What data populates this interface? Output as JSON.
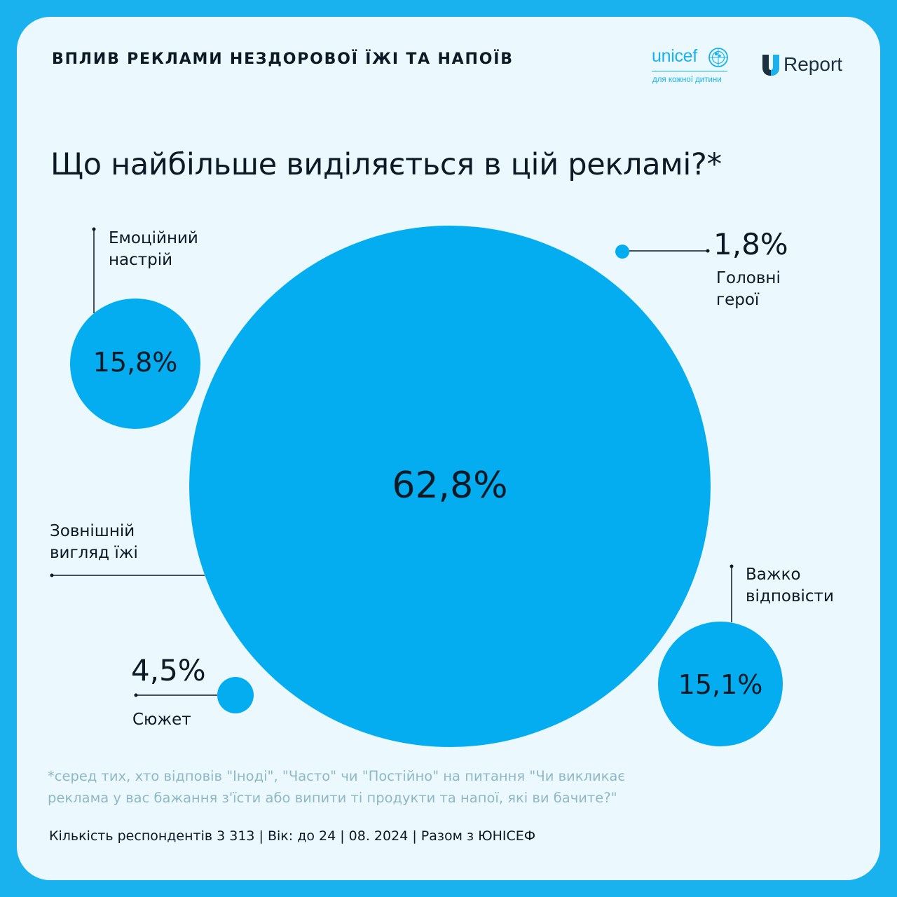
{
  "header": {
    "title": "ВПЛИВ РЕКЛАМИ НЕЗДОРОВОЇ ЇЖІ ТА НАПОЇВ",
    "unicef_word": "unicef",
    "unicef_tagline": "для кожної дитини",
    "ureport_word": "Report"
  },
  "colors": {
    "background": "#1ab2ee",
    "card": "#ebf8fd",
    "bubble": "#03adef",
    "text": "#0b1a25"
  },
  "chart_data": {
    "type": "bubble",
    "title": "Що найбільше виділяється в цій рекламі?*",
    "series": [
      {
        "label": "Зовнішній вигляд їжі",
        "value": 62.8,
        "value_text": "62,8%"
      },
      {
        "label": "Емоційний настрій",
        "value": 15.8,
        "value_text": "15,8%"
      },
      {
        "label": "Важко відповісти",
        "value": 15.1,
        "value_text": "15,1%"
      },
      {
        "label": "Сюжет",
        "value": 4.5,
        "value_text": "4,5%"
      },
      {
        "label": "Головні герої",
        "value": 1.8,
        "value_text": "1,8%"
      }
    ]
  },
  "labels": {
    "emotional_line1": "Емоційний",
    "emotional_line2": "настрій",
    "appearance_line1": "Зовнішній",
    "appearance_line2": "вигляд їжі",
    "hard_line1": "Важко",
    "hard_line2": "відповісти",
    "plot": "Сюжет",
    "heroes_line1": "Головні",
    "heroes_line2": "герої"
  },
  "footnote": "*серед тих, хто відповів \"Іноді\", \"Часто\" чи \"Постійно\" на питання \"Чи викликає реклама у вас бажання з'їсти або випити ті продукти та напої, які ви бачите?\"",
  "footer": "Кількість респондентів 3 313 | Вік: до 24 | 08. 2024 | Разом з ЮНІСЕФ"
}
